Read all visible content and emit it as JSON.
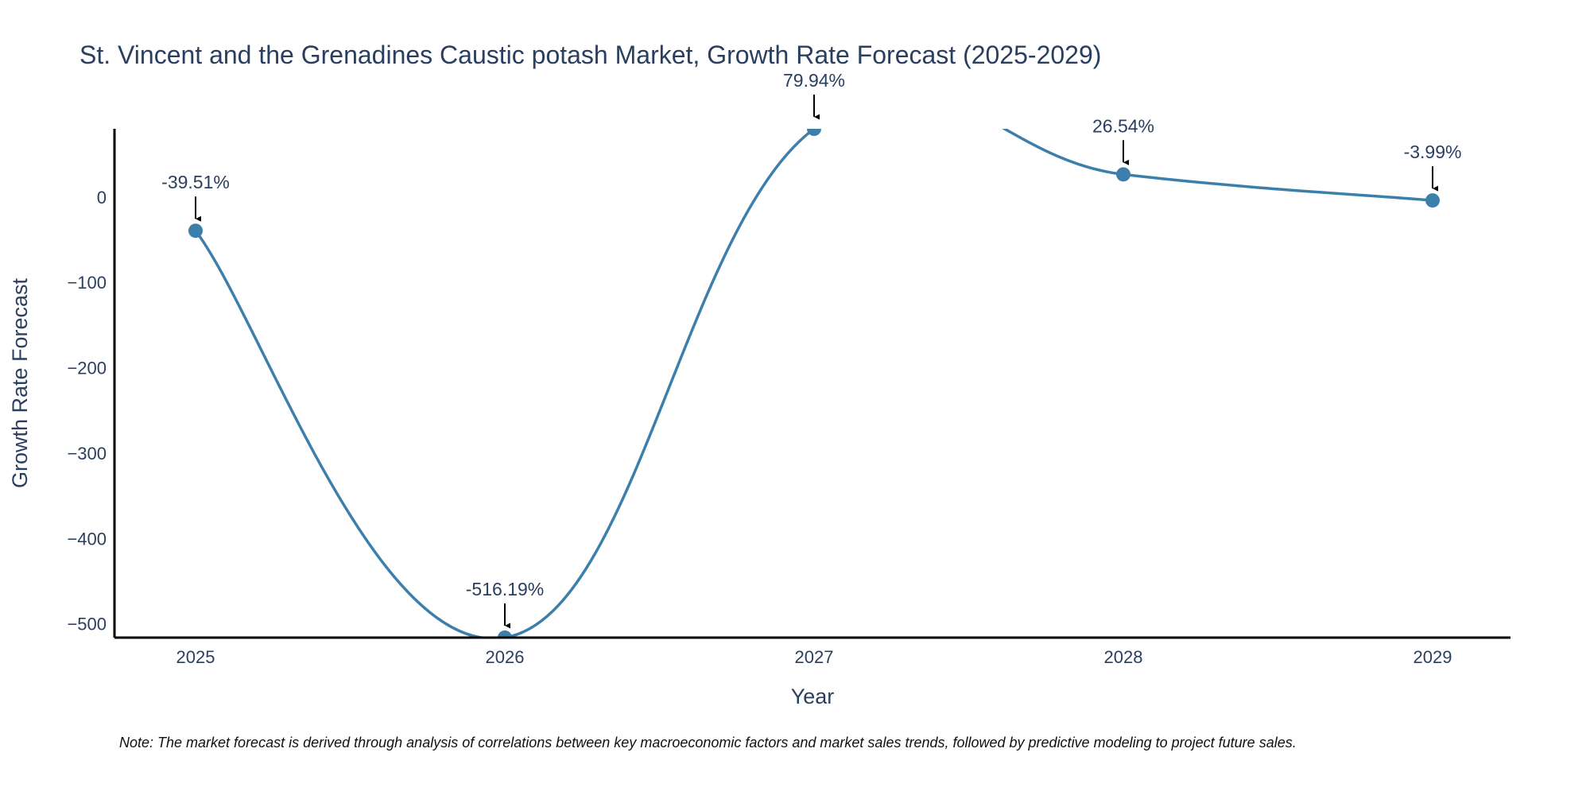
{
  "chart_data": {
    "type": "line",
    "title": "St. Vincent and the Grenadines Caustic potash Market, Growth Rate Forecast (2025-2029)",
    "xlabel": "Year",
    "ylabel": "Growth Rate Forecast",
    "categories": [
      "2025",
      "2026",
      "2027",
      "2028",
      "2029"
    ],
    "values": [
      -39.51,
      -516.19,
      79.94,
      26.54,
      -3.99
    ],
    "labels": [
      "-39.51%",
      "-516.19%",
      "79.94%",
      "26.54%",
      "-3.99%"
    ],
    "yticks": [
      0,
      -100,
      -200,
      -300,
      -400,
      -500
    ],
    "ytick_labels": [
      "0",
      "−100",
      "−200",
      "−300",
      "−400",
      "−500"
    ],
    "ylim": [
      -516.19,
      79.94
    ],
    "line_color": "#3d7fab",
    "marker_color": "#3d7fab",
    "grid": false,
    "note": "Note: The market forecast is derived through analysis of correlations between key macroeconomic factors and market sales trends, followed by predictive modeling to project future sales."
  }
}
